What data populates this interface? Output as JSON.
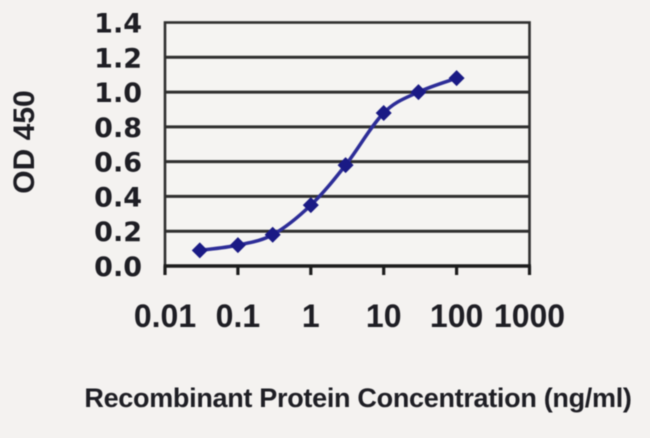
{
  "chart_data": {
    "type": "line",
    "x": [
      0.03,
      0.1,
      0.3,
      1,
      3,
      10,
      30,
      100
    ],
    "values": [
      0.09,
      0.12,
      0.18,
      0.35,
      0.58,
      0.88,
      1.0,
      1.08
    ],
    "title": "",
    "xlabel": "Recombinant Protein Concentration (ng/ml)",
    "ylabel": "OD 450",
    "x_scale": "log",
    "xlim": [
      0.01,
      1000
    ],
    "x_ticks": [
      "0.01",
      "0.1",
      "1",
      "10",
      "100",
      "1000"
    ],
    "x_tick_values": [
      0.01,
      0.1,
      1,
      10,
      100,
      1000
    ],
    "ylim": [
      0,
      1.4
    ],
    "y_ticks": [
      "0.0",
      "0.2",
      "0.4",
      "0.6",
      "0.8",
      "1.0",
      "1.2",
      "1.4"
    ],
    "grid": "horizontal",
    "legend": "none",
    "marker": "diamond",
    "colors": {
      "line": "#2d2d98",
      "marker": "#1a1a85",
      "grid": "#2f2f2f",
      "axis": "#1c1c1c",
      "text": "#1e1e24",
      "background": "#f4f2f0",
      "plot_background": "#f5f4f2"
    }
  }
}
